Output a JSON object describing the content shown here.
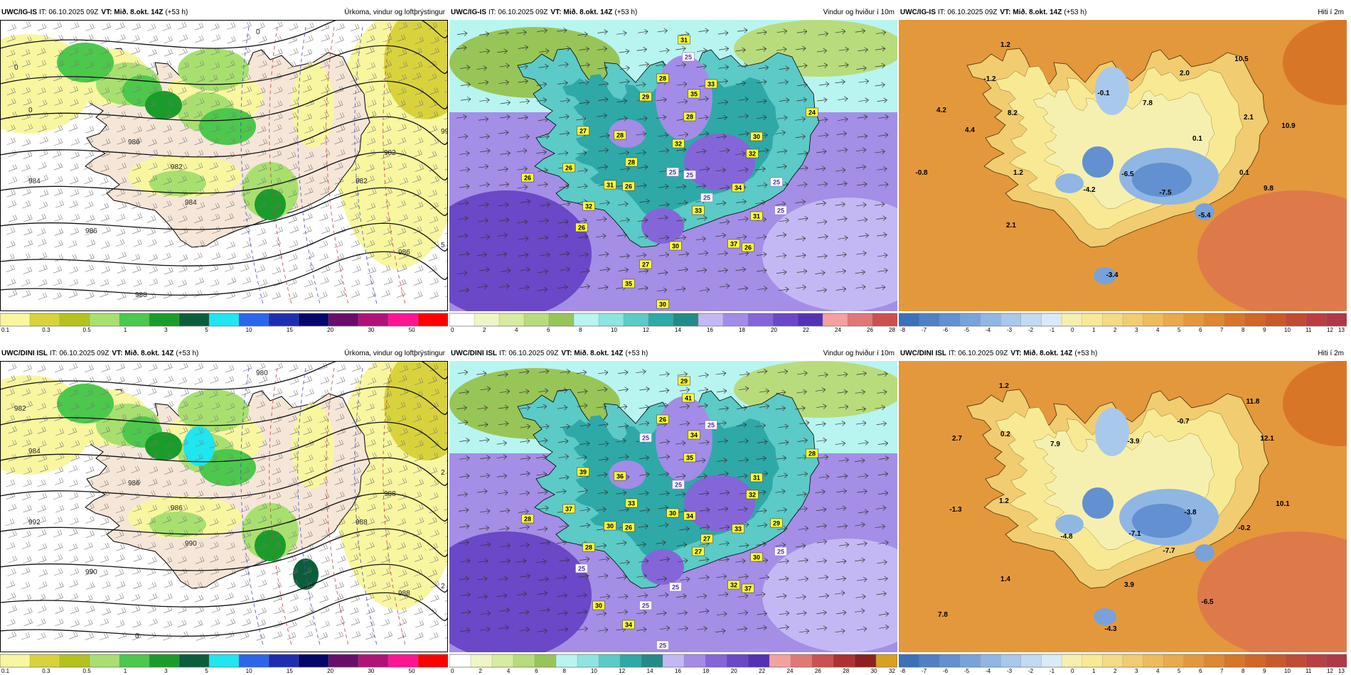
{
  "panels": [
    {
      "id": "igis-precip",
      "model": "UWC/IG-IS",
      "it_label": "IT: 06.10.2025 09Z",
      "vt_label": "VT:",
      "vt_value": "Mið. 8.okt. 14Z",
      "lead": "(+53 h)",
      "title": "Úrkoma, vindur og loftþrýstingur",
      "kind": "precip",
      "colorbar": {
        "ticks": [
          "0.1",
          "0.3",
          "0.5",
          "1",
          "3",
          "5",
          "10",
          "15",
          "20",
          "30",
          "50"
        ],
        "colors": [
          "#f8f7a0",
          "#d8d33c",
          "#b5c21d",
          "#a8e070",
          "#4cc84c",
          "#1a9c2a",
          "#0b5e3b",
          "#1fe6f0",
          "#2b66ea",
          "#1d2fb0",
          "#05066b",
          "#6a0d6a",
          "#b0127a",
          "#ff1493",
          "#ff0000"
        ]
      },
      "isobars": [
        "0",
        "0",
        "0",
        "986",
        "982",
        "982",
        "982",
        "984",
        "984",
        "986",
        "986",
        "988",
        "990",
        "5",
        "2"
      ],
      "point_labels": []
    },
    {
      "id": "igis-wind",
      "model": "UWC/IG-IS",
      "it_label": "IT: 06.10.2025 09Z",
      "vt_label": "VT:",
      "vt_value": "Mið. 8.okt. 14Z",
      "lead": "(+53 h)",
      "title": "Vindur og hviður í 10m",
      "kind": "wind",
      "colorbar": {
        "ticks": [
          "0",
          "2",
          "4",
          "6",
          "8",
          "10",
          "12",
          "14",
          "16",
          "18",
          "20",
          "22",
          "24",
          "26",
          "28"
        ],
        "colors": [
          "#ffffff",
          "#eef6c8",
          "#d6eca0",
          "#b8dc7c",
          "#98c558",
          "#b8f5f0",
          "#8de4e0",
          "#5ccac6",
          "#2fa8a8",
          "#248a88",
          "#c4b8f4",
          "#a28ce8",
          "#8466d8",
          "#6a48c8",
          "#5432b4",
          "#f4a0a0",
          "#e07878",
          "#cc5050"
        ]
      },
      "gust_labels": [
        "31",
        "25",
        "28",
        "35",
        "33",
        "29",
        "28",
        "27",
        "28",
        "32",
        "30",
        "24",
        "26",
        "28",
        "32",
        "31",
        "26",
        "25",
        "25",
        "34",
        "25",
        "25",
        "26",
        "32",
        "33",
        "31",
        "37",
        "26",
        "26",
        "30",
        "27",
        "35",
        "25",
        "25",
        "30",
        "25"
      ],
      "point_labels": []
    },
    {
      "id": "igis-temp",
      "model": "UWC/IG-IS",
      "it_label": "IT: 06.10.2025 09Z",
      "vt_label": "VT:",
      "vt_value": "Mið. 8.okt. 14Z",
      "lead": "(+53 h)",
      "title": "Hiti í 2m",
      "kind": "temp",
      "colorbar": {
        "ticks": [
          "-8",
          "-7",
          "-6",
          "-5",
          "-4",
          "-3",
          "-2",
          "-1",
          "0",
          "1",
          "2",
          "3",
          "4",
          "5",
          "6",
          "7",
          "8",
          "9",
          "10",
          "11",
          "12",
          "13"
        ],
        "colors": [
          "#3c70b8",
          "#4f80c4",
          "#6290d0",
          "#78a2da",
          "#90b6e4",
          "#a8c8ec",
          "#c2daf2",
          "#daeaf6",
          "#f6f0b0",
          "#f8ea94",
          "#f4dc84",
          "#f2cc70",
          "#ecbc5c",
          "#e8aa4a",
          "#e4983c",
          "#de8830",
          "#d87628",
          "#d26624",
          "#c85a2a",
          "#c04c34",
          "#b84040",
          "#b03848"
        ]
      },
      "temp_labels": [
        "1.2",
        "-1.2",
        "4.2",
        "4.4",
        "8.2",
        "-0.1",
        "7.8",
        "2.0",
        "10.5",
        "2.1",
        "10.9",
        "0.1",
        "1.2",
        "-6.5",
        "-4.2",
        "-7.5",
        "0.1",
        "-0.8",
        "9.8",
        "-5.4",
        "2.1",
        "-3.4"
      ]
    },
    {
      "id": "dini-precip",
      "model": "UWC/DINI ISL",
      "it_label": "IT: 06.10.2025 09Z",
      "vt_label": "VT:",
      "vt_value": "Mið. 8.okt. 14Z",
      "lead": "(+53 h)",
      "title": "Úrkoma, vindur og loftþrýstingur",
      "kind": "precip",
      "colorbar": {
        "ticks": [
          "0.1",
          "0.3",
          "0.5",
          "1",
          "3",
          "5",
          "10",
          "15",
          "20",
          "30",
          "50"
        ],
        "colors": [
          "#f8f7a0",
          "#d8d33c",
          "#b5c21d",
          "#a8e070",
          "#4cc84c",
          "#1a9c2a",
          "#0b5e3b",
          "#1fe6f0",
          "#2b66ea",
          "#1d2fb0",
          "#05066b",
          "#6a0d6a",
          "#b0127a",
          "#ff1493",
          "#ff0000"
        ]
      },
      "isobars": [
        "980",
        "982",
        "984",
        "986",
        "986",
        "988",
        "988",
        "990",
        "992",
        "990",
        "988",
        "0",
        "2",
        "2"
      ],
      "point_labels": []
    },
    {
      "id": "dini-wind",
      "model": "UWC/DINI ISL",
      "it_label": "IT: 06.10.2025 09Z",
      "vt_label": "VT:",
      "vt_value": "Mið. 8.okt. 14Z",
      "lead": "(+53 h)",
      "title": "Vindur og hviður í 10m",
      "kind": "wind",
      "colorbar": {
        "ticks": [
          "0",
          "2",
          "4",
          "6",
          "8",
          "10",
          "12",
          "14",
          "16",
          "18",
          "20",
          "22",
          "24",
          "26",
          "28",
          "30",
          "32"
        ],
        "colors": [
          "#ffffff",
          "#eef6c8",
          "#d6eca0",
          "#b8dc7c",
          "#98c558",
          "#b8f5f0",
          "#8de4e0",
          "#5ccac6",
          "#2fa8a8",
          "#248a88",
          "#c4b8f4",
          "#a28ce8",
          "#8466d8",
          "#6a48c8",
          "#5432b4",
          "#f4a0a0",
          "#e07878",
          "#cc5050",
          "#b03030",
          "#902020",
          "#d8a020"
        ]
      },
      "gust_labels": [
        "29",
        "41",
        "26",
        "34",
        "25",
        "25",
        "35",
        "39",
        "36",
        "25",
        "31",
        "28",
        "37",
        "33",
        "32",
        "30",
        "26",
        "30",
        "34",
        "33",
        "27",
        "29",
        "28",
        "28",
        "27",
        "30",
        "32",
        "25",
        "37",
        "25",
        "25",
        "34",
        "35",
        "31",
        "25",
        "25",
        "30"
      ],
      "point_labels": []
    },
    {
      "id": "dini-temp",
      "model": "UWC/DINI ISL",
      "it_label": "IT: 06.10.2025 09Z",
      "vt_label": "VT:",
      "vt_value": "Mið. 8.okt. 14Z",
      "lead": "(+53 h)",
      "title": "Hiti í 2m",
      "kind": "temp",
      "colorbar": {
        "ticks": [
          "-8",
          "-7",
          "-6",
          "-5",
          "-4",
          "-3",
          "-2",
          "-1",
          "0",
          "1",
          "2",
          "3",
          "4",
          "5",
          "6",
          "7",
          "8",
          "9",
          "10",
          "11",
          "12",
          "13"
        ],
        "colors": [
          "#3c70b8",
          "#4f80c4",
          "#6290d0",
          "#78a2da",
          "#90b6e4",
          "#a8c8ec",
          "#c2daf2",
          "#daeaf6",
          "#f6f0b0",
          "#f8ea94",
          "#f4dc84",
          "#f2cc70",
          "#ecbc5c",
          "#e8aa4a",
          "#e4983c",
          "#de8830",
          "#d87628",
          "#d26624",
          "#c85a2a",
          "#c04c34",
          "#b84040",
          "#b03848"
        ]
      },
      "temp_labels": [
        "1.2",
        "2.7",
        "0.2",
        "7.9",
        "-3.9",
        "-0.7",
        "11.8",
        "12.1",
        "1.2",
        "-1.3",
        "-4.8",
        "-7.1",
        "-3.8",
        "-7.7",
        "-0.2",
        "10.1",
        "1.4",
        "3.9",
        "-6.5",
        "7.8",
        "-4.3"
      ]
    }
  ]
}
